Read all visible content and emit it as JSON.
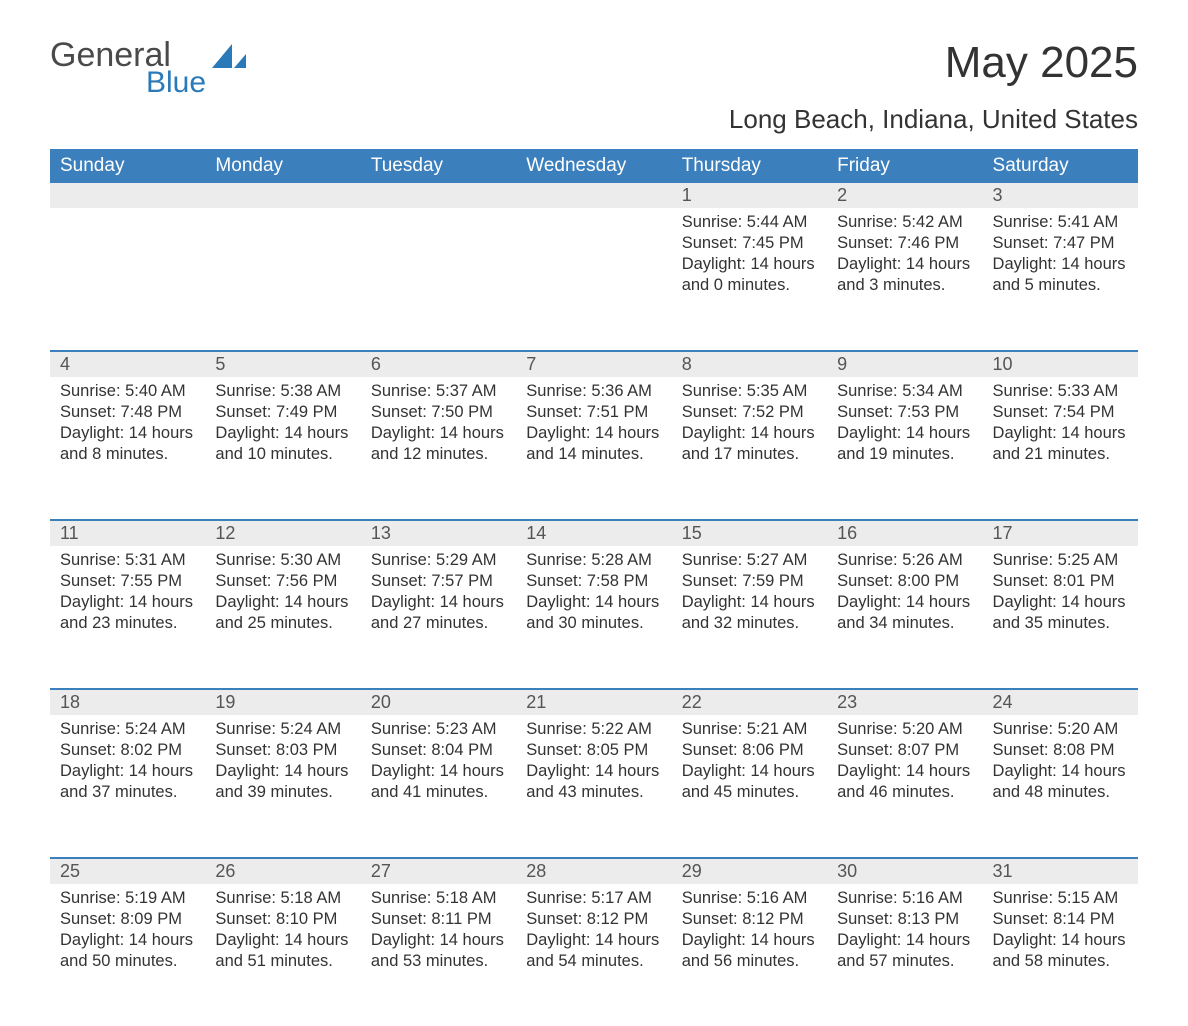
{
  "brand": {
    "name": "General",
    "sub": "Blue",
    "color": "#2a7ab9"
  },
  "title": "May 2025",
  "location": "Long Beach, Indiana, United States",
  "colors": {
    "header_bg": "#3b7fbd",
    "header_text": "#ffffff",
    "daynum_bg": "#ececec",
    "row_border": "#3b7fbd",
    "body_text": "#333333",
    "page_bg": "#ffffff"
  },
  "typography": {
    "title_fontsize": 44,
    "subtitle_fontsize": 26,
    "header_fontsize": 19,
    "daynum_fontsize": 18,
    "body_fontsize": 16.5
  },
  "weekdays": [
    "Sunday",
    "Monday",
    "Tuesday",
    "Wednesday",
    "Thursday",
    "Friday",
    "Saturday"
  ],
  "weeks": [
    [
      null,
      null,
      null,
      null,
      {
        "n": "1",
        "sunrise": "5:44 AM",
        "sunset": "7:45 PM",
        "daylight": "14 hours and 0 minutes."
      },
      {
        "n": "2",
        "sunrise": "5:42 AM",
        "sunset": "7:46 PM",
        "daylight": "14 hours and 3 minutes."
      },
      {
        "n": "3",
        "sunrise": "5:41 AM",
        "sunset": "7:47 PM",
        "daylight": "14 hours and 5 minutes."
      }
    ],
    [
      {
        "n": "4",
        "sunrise": "5:40 AM",
        "sunset": "7:48 PM",
        "daylight": "14 hours and 8 minutes."
      },
      {
        "n": "5",
        "sunrise": "5:38 AM",
        "sunset": "7:49 PM",
        "daylight": "14 hours and 10 minutes."
      },
      {
        "n": "6",
        "sunrise": "5:37 AM",
        "sunset": "7:50 PM",
        "daylight": "14 hours and 12 minutes."
      },
      {
        "n": "7",
        "sunrise": "5:36 AM",
        "sunset": "7:51 PM",
        "daylight": "14 hours and 14 minutes."
      },
      {
        "n": "8",
        "sunrise": "5:35 AM",
        "sunset": "7:52 PM",
        "daylight": "14 hours and 17 minutes."
      },
      {
        "n": "9",
        "sunrise": "5:34 AM",
        "sunset": "7:53 PM",
        "daylight": "14 hours and 19 minutes."
      },
      {
        "n": "10",
        "sunrise": "5:33 AM",
        "sunset": "7:54 PM",
        "daylight": "14 hours and 21 minutes."
      }
    ],
    [
      {
        "n": "11",
        "sunrise": "5:31 AM",
        "sunset": "7:55 PM",
        "daylight": "14 hours and 23 minutes."
      },
      {
        "n": "12",
        "sunrise": "5:30 AM",
        "sunset": "7:56 PM",
        "daylight": "14 hours and 25 minutes."
      },
      {
        "n": "13",
        "sunrise": "5:29 AM",
        "sunset": "7:57 PM",
        "daylight": "14 hours and 27 minutes."
      },
      {
        "n": "14",
        "sunrise": "5:28 AM",
        "sunset": "7:58 PM",
        "daylight": "14 hours and 30 minutes."
      },
      {
        "n": "15",
        "sunrise": "5:27 AM",
        "sunset": "7:59 PM",
        "daylight": "14 hours and 32 minutes."
      },
      {
        "n": "16",
        "sunrise": "5:26 AM",
        "sunset": "8:00 PM",
        "daylight": "14 hours and 34 minutes."
      },
      {
        "n": "17",
        "sunrise": "5:25 AM",
        "sunset": "8:01 PM",
        "daylight": "14 hours and 35 minutes."
      }
    ],
    [
      {
        "n": "18",
        "sunrise": "5:24 AM",
        "sunset": "8:02 PM",
        "daylight": "14 hours and 37 minutes."
      },
      {
        "n": "19",
        "sunrise": "5:24 AM",
        "sunset": "8:03 PM",
        "daylight": "14 hours and 39 minutes."
      },
      {
        "n": "20",
        "sunrise": "5:23 AM",
        "sunset": "8:04 PM",
        "daylight": "14 hours and 41 minutes."
      },
      {
        "n": "21",
        "sunrise": "5:22 AM",
        "sunset": "8:05 PM",
        "daylight": "14 hours and 43 minutes."
      },
      {
        "n": "22",
        "sunrise": "5:21 AM",
        "sunset": "8:06 PM",
        "daylight": "14 hours and 45 minutes."
      },
      {
        "n": "23",
        "sunrise": "5:20 AM",
        "sunset": "8:07 PM",
        "daylight": "14 hours and 46 minutes."
      },
      {
        "n": "24",
        "sunrise": "5:20 AM",
        "sunset": "8:08 PM",
        "daylight": "14 hours and 48 minutes."
      }
    ],
    [
      {
        "n": "25",
        "sunrise": "5:19 AM",
        "sunset": "8:09 PM",
        "daylight": "14 hours and 50 minutes."
      },
      {
        "n": "26",
        "sunrise": "5:18 AM",
        "sunset": "8:10 PM",
        "daylight": "14 hours and 51 minutes."
      },
      {
        "n": "27",
        "sunrise": "5:18 AM",
        "sunset": "8:11 PM",
        "daylight": "14 hours and 53 minutes."
      },
      {
        "n": "28",
        "sunrise": "5:17 AM",
        "sunset": "8:12 PM",
        "daylight": "14 hours and 54 minutes."
      },
      {
        "n": "29",
        "sunrise": "5:16 AM",
        "sunset": "8:12 PM",
        "daylight": "14 hours and 56 minutes."
      },
      {
        "n": "30",
        "sunrise": "5:16 AM",
        "sunset": "8:13 PM",
        "daylight": "14 hours and 57 minutes."
      },
      {
        "n": "31",
        "sunrise": "5:15 AM",
        "sunset": "8:14 PM",
        "daylight": "14 hours and 58 minutes."
      }
    ]
  ],
  "labels": {
    "sunrise": "Sunrise:",
    "sunset": "Sunset:",
    "daylight": "Daylight:"
  }
}
